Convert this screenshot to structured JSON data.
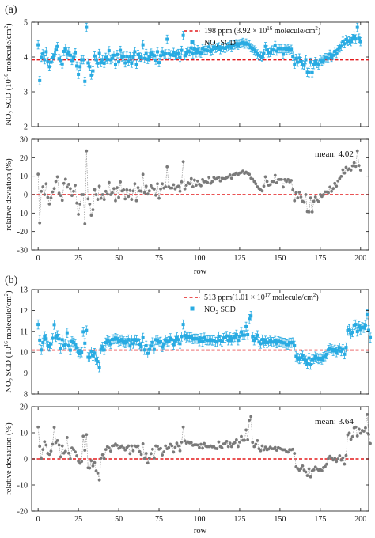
{
  "chart_data": [
    {
      "panel": "(a)",
      "type": "scatter",
      "ylabel": "NO2 SCD (10^16 molecule/cm^2)",
      "ylim": [
        2,
        5
      ],
      "yticks": [
        2,
        3,
        4,
        5
      ],
      "xlim": [
        -4,
        205
      ],
      "xticks": [
        0,
        25,
        50,
        75,
        100,
        125,
        150,
        175,
        200
      ],
      "reference": {
        "value": 3.92,
        "label": "198 ppm (3.92 × 10^16 molecule/cm^2)"
      },
      "series": [
        {
          "name": "NO2 SCD",
          "error": 0.12,
          "color": "#29abe2",
          "values": [
            4.35,
            3.32,
            3.99,
            4.09,
            3.92,
            4.15,
            3.86,
            3.72,
            3.85,
            3.98,
            4.05,
            4.2,
            4.3,
            3.95,
            3.9,
            3.8,
            4.16,
            4.25,
            4.08,
            4.14,
            4.05,
            3.9,
            3.99,
            4.12,
            3.74,
            3.5,
            3.72,
            3.92,
            3.92,
            3.3,
            4.85,
            3.83,
            3.72,
            3.48,
            3.6,
            4.03,
            3.92,
            3.82,
            4.1,
            3.84,
            3.92,
            3.82,
            3.99,
            3.93,
            4.18,
            3.92,
            3.96,
            4.05,
            3.79,
            4.07,
            3.86,
            4.19,
            4.0,
            4.02,
            3.83,
            4.02,
            3.88,
            4.01,
            3.82,
            4.0,
            4.15,
            3.79,
            4.07,
            4.0,
            3.99,
            4.35,
            3.96,
            4.1,
            3.93,
            4.0,
            4.11,
            4.06,
            4.04,
            3.91,
            4.15,
            3.84,
            4.04,
            4.15,
            4.06,
            4.09,
            4.51,
            4.09,
            4.06,
            4.06,
            4.13,
            4.04,
            4.08,
            4.1,
            3.99,
            4.19,
            4.62,
            4.04,
            4.12,
            4.17,
            4.15,
            4.26,
            4.09,
            4.23,
            4.12,
            4.21,
            4.14,
            4.11,
            4.24,
            4.19,
            4.2,
            4.18,
            4.29,
            4.16,
            4.2,
            4.29,
            4.25,
            4.27,
            4.29,
            4.21,
            4.27,
            4.26,
            4.25,
            4.28,
            4.3,
            4.34,
            4.27,
            4.34,
            4.35,
            4.38,
            4.34,
            4.38,
            4.39,
            4.42,
            4.37,
            4.4,
            4.37,
            4.35,
            4.27,
            4.25,
            4.2,
            4.15,
            4.09,
            4.05,
            4.02,
            4.0,
            4.1,
            4.3,
            4.2,
            4.12,
            4.13,
            4.2,
            4.2,
            4.33,
            4.17,
            4.24,
            4.24,
            4.24,
            4.08,
            4.24,
            4.2,
            4.24,
            4.19,
            4.22,
            4.02,
            3.79,
            3.96,
            3.85,
            3.97,
            3.87,
            3.78,
            3.76,
            3.92,
            3.56,
            3.55,
            3.85,
            3.55,
            3.78,
            3.87,
            3.81,
            3.77,
            3.92,
            3.88,
            3.92,
            3.98,
            3.98,
            3.96,
            4.08,
            3.99,
            4.05,
            4.16,
            4.1,
            4.21,
            4.26,
            4.31,
            4.45,
            4.38,
            4.5,
            4.45,
            4.47,
            4.44,
            4.53,
            4.6,
            4.52,
            4.85,
            4.54,
            4.44
          ]
        }
      ]
    },
    {
      "panel": "(a)",
      "type": "line",
      "xlabel": "row",
      "ylabel": "relative deviation (%)",
      "ylim": [
        -30,
        30
      ],
      "yticks": [
        -30,
        -20,
        -10,
        0,
        10,
        20,
        30
      ],
      "xlim": [
        -4,
        205
      ],
      "xticks": [
        0,
        25,
        50,
        75,
        100,
        125,
        150,
        175,
        200
      ],
      "reference": {
        "value": 0
      },
      "annotation": "mean: 4.02",
      "series": [
        {
          "name": "relative deviation",
          "color": "#7a7a7a",
          "values": [
            11.1,
            -15.3,
            1.8,
            4.3,
            0.0,
            5.9,
            -1.5,
            -5.1,
            -1.8,
            1.5,
            3.3,
            7.1,
            9.7,
            0.8,
            -0.5,
            -3.1,
            6.1,
            8.4,
            4.1,
            5.6,
            3.3,
            -0.5,
            1.8,
            5.1,
            -4.6,
            -10.7,
            -5.1,
            0.0,
            0.0,
            -15.8,
            23.7,
            -2.3,
            -5.1,
            -11.2,
            -8.2,
            2.8,
            0.0,
            -2.6,
            4.6,
            -2.0,
            0.0,
            -2.6,
            1.8,
            0.3,
            6.6,
            0.0,
            1.0,
            3.3,
            -3.3,
            3.8,
            -1.5,
            6.9,
            2.0,
            2.6,
            -2.3,
            2.6,
            -1.0,
            2.3,
            -2.6,
            2.0,
            5.9,
            -3.3,
            3.8,
            2.0,
            1.8,
            11.0,
            1.0,
            4.6,
            0.3,
            2.0,
            4.8,
            3.6,
            3.1,
            -0.3,
            5.9,
            -2.0,
            3.1,
            5.9,
            3.6,
            4.3,
            15.1,
            4.3,
            3.6,
            3.6,
            5.4,
            3.1,
            4.1,
            4.6,
            1.8,
            6.9,
            17.9,
            3.1,
            5.1,
            6.4,
            5.9,
            8.7,
            4.3,
            7.9,
            5.1,
            7.4,
            5.6,
            4.8,
            8.2,
            6.9,
            7.1,
            6.6,
            9.4,
            6.1,
            7.1,
            9.4,
            8.4,
            8.9,
            9.4,
            7.4,
            8.9,
            8.7,
            8.4,
            9.2,
            9.7,
            10.7,
            8.9,
            10.7,
            11.0,
            11.7,
            10.7,
            11.7,
            12.0,
            12.8,
            11.5,
            12.2,
            11.5,
            11.0,
            8.9,
            8.4,
            7.1,
            5.9,
            4.3,
            3.3,
            2.6,
            2.0,
            4.6,
            9.7,
            7.1,
            5.1,
            5.4,
            7.1,
            7.1,
            10.5,
            6.4,
            8.2,
            8.2,
            8.2,
            4.1,
            8.2,
            7.1,
            8.2,
            6.9,
            7.7,
            2.6,
            -3.3,
            1.0,
            -1.8,
            1.3,
            -1.3,
            -3.6,
            -4.1,
            0.0,
            -9.2,
            -9.4,
            -1.8,
            -9.4,
            -3.6,
            -1.3,
            -2.8,
            -3.8,
            0.0,
            -1.0,
            0.0,
            1.5,
            1.5,
            1.0,
            4.1,
            1.8,
            3.3,
            6.1,
            4.6,
            7.4,
            8.7,
            9.9,
            13.5,
            11.7,
            14.8,
            13.5,
            14.0,
            13.3,
            15.6,
            17.3,
            15.3,
            23.7,
            15.8,
            13.3
          ]
        }
      ]
    },
    {
      "panel": "(b)",
      "type": "scatter",
      "ylabel": "NO2 SCD (10^16 molecule/cm^2)",
      "ylim": [
        8,
        13
      ],
      "yticks": [
        8,
        9,
        10,
        11,
        12,
        13
      ],
      "xlim": [
        -4,
        205
      ],
      "xticks": [
        0,
        25,
        50,
        75,
        100,
        125,
        150,
        175,
        200
      ],
      "reference": {
        "value": 10.1,
        "label": "513 ppm(1.01 × 10^17 molecule/cm^2)"
      },
      "series": [
        {
          "name": "NO2 SCD",
          "error": 0.22,
          "color": "#29abe2",
          "values": [
            11.33,
            10.58,
            10.11,
            10.46,
            10.77,
            10.64,
            10.31,
            10.27,
            10.4,
            10.67,
            11.32,
            10.73,
            10.81,
            10.64,
            10.18,
            10.6,
            10.32,
            10.39,
            10.93,
            10.32,
            10.1,
            10.52,
            10.46,
            10.37,
            10.22,
            10.01,
            9.93,
            10.0,
            10.98,
            10.43,
            11.04,
            9.76,
            9.75,
            10.03,
            9.83,
            9.96,
            9.64,
            9.55,
            9.28,
            10.13,
            10.26,
            10.11,
            10.46,
            10.57,
            10.52,
            10.4,
            10.61,
            10.62,
            10.68,
            10.63,
            10.5,
            10.55,
            10.61,
            10.52,
            10.44,
            10.53,
            10.61,
            10.3,
            10.6,
            10.41,
            10.61,
            10.57,
            10.6,
            10.38,
            10.27,
            10.69,
            10.11,
            10.31,
            9.94,
            10.13,
            10.3,
            10.47,
            10.13,
            10.6,
            10.58,
            10.47,
            10.5,
            10.25,
            10.37,
            10.6,
            10.49,
            10.53,
            10.67,
            10.6,
            10.36,
            10.54,
            10.71,
            10.6,
            10.41,
            10.75,
            11.33,
            10.8,
            10.71,
            10.76,
            10.72,
            10.73,
            10.63,
            10.65,
            10.65,
            10.64,
            10.53,
            10.67,
            10.51,
            10.7,
            10.59,
            10.57,
            10.57,
            10.6,
            10.56,
            10.57,
            10.5,
            10.49,
            10.76,
            10.57,
            10.52,
            10.68,
            10.7,
            10.78,
            10.57,
            10.71,
            10.57,
            10.68,
            10.73,
            10.84,
            10.57,
            10.75,
            10.97,
            10.82,
            10.82,
            11.22,
            10.84,
            11.59,
            11.74,
            10.74,
            10.57,
            10.67,
            10.81,
            10.49,
            10.41,
            10.61,
            10.45,
            10.55,
            10.45,
            10.48,
            10.55,
            10.49,
            10.49,
            10.54,
            10.43,
            10.53,
            10.5,
            10.47,
            10.45,
            10.45,
            10.38,
            10.36,
            10.46,
            10.45,
            10.47,
            10.31,
            9.8,
            9.73,
            9.67,
            9.73,
            9.83,
            9.67,
            9.6,
            9.45,
            9.72,
            9.4,
            9.64,
            9.68,
            9.79,
            9.72,
            9.67,
            9.71,
            9.65,
            9.77,
            9.81,
            9.9,
            10.11,
            10.2,
            10.14,
            10.06,
            10.12,
            10.0,
            10.1,
            10.22,
            10.05,
            10.14,
            9.9,
            10.23,
            11.03,
            11.1,
            10.86,
            10.96,
            11.3,
            11.33,
            10.99,
            11.25,
            11.09,
            11.2,
            11.17,
            11.3,
            11.82,
            11.05,
            10.7
          ]
        }
      ]
    },
    {
      "panel": "(b)",
      "type": "line",
      "xlabel": "row",
      "ylabel": "relative deviation (%)",
      "ylim": [
        -20,
        20
      ],
      "yticks": [
        -20,
        -10,
        0,
        10,
        20
      ],
      "xlim": [
        -4,
        205
      ],
      "xticks": [
        0,
        25,
        50,
        75,
        100,
        125,
        150,
        175,
        200
      ],
      "reference": {
        "value": 0
      },
      "annotation": "mean: 3.64",
      "series": [
        {
          "name": "relative deviation",
          "color": "#7a7a7a",
          "values": [
            12.2,
            4.8,
            0.1,
            3.6,
            6.6,
            5.3,
            2.1,
            1.7,
            3.0,
            5.6,
            12.1,
            6.2,
            7.0,
            5.3,
            0.8,
            5.0,
            2.2,
            2.9,
            8.2,
            2.2,
            0.0,
            4.2,
            3.6,
            2.7,
            1.2,
            -0.9,
            -1.7,
            -1.0,
            8.7,
            3.3,
            9.3,
            -3.4,
            -3.5,
            -0.7,
            -2.7,
            -1.4,
            -4.6,
            -5.4,
            -8.1,
            0.3,
            1.6,
            0.1,
            3.6,
            4.7,
            4.2,
            3.0,
            5.0,
            5.1,
            5.7,
            5.2,
            4.0,
            4.5,
            5.0,
            4.2,
            3.4,
            4.3,
            5.0,
            2.0,
            5.0,
            3.1,
            5.0,
            4.7,
            5.0,
            2.8,
            1.7,
            5.8,
            0.1,
            2.1,
            -1.6,
            0.3,
            2.0,
            3.7,
            0.3,
            5.0,
            4.8,
            3.7,
            4.0,
            1.5,
            2.7,
            5.0,
            3.9,
            4.3,
            5.6,
            5.0,
            2.6,
            4.4,
            6.0,
            5.0,
            3.1,
            6.4,
            12.2,
            6.9,
            6.0,
            6.5,
            6.1,
            6.2,
            5.2,
            5.4,
            5.4,
            5.3,
            4.3,
            5.6,
            4.1,
            5.9,
            4.9,
            4.7,
            4.7,
            5.0,
            4.6,
            4.7,
            4.0,
            3.9,
            6.5,
            4.7,
            4.2,
            5.7,
            5.9,
            6.7,
            4.7,
            6.0,
            4.7,
            5.7,
            6.2,
            7.3,
            4.7,
            6.4,
            8.6,
            7.1,
            7.1,
            11.1,
            7.3,
            14.8,
            16.2,
            6.3,
            4.7,
            5.6,
            7.0,
            3.9,
            3.1,
            5.0,
            3.5,
            4.5,
            3.5,
            3.8,
            4.5,
            3.9,
            3.9,
            4.4,
            3.3,
            4.3,
            4.0,
            3.7,
            3.5,
            3.5,
            2.8,
            2.6,
            3.6,
            3.5,
            3.7,
            2.1,
            -3.0,
            -3.7,
            -4.3,
            -3.7,
            -2.7,
            -4.3,
            -5.0,
            -6.4,
            -3.8,
            -6.9,
            -4.6,
            -4.2,
            -3.1,
            -3.8,
            -4.3,
            -3.9,
            -4.5,
            -3.3,
            -2.9,
            -2.0,
            0.1,
            1.0,
            0.4,
            -0.4,
            0.2,
            -1.0,
            0.0,
            1.2,
            -0.5,
            0.4,
            -2.0,
            1.3,
            9.2,
            9.9,
            7.5,
            8.5,
            11.9,
            12.2,
            8.8,
            11.4,
            9.8,
            10.9,
            10.6,
            11.9,
            17.0,
            9.4,
            5.9
          ]
        }
      ]
    }
  ],
  "panels": {
    "a": {
      "label": "(a)",
      "legend_ref": "198 ppm (3.92 × 10",
      "legend_ref_exp": "16",
      "legend_ref_tail": " molecule/cm",
      "legend_ref_sup2": "2",
      "legend_ref_close": ")",
      "legend_series": "NO",
      "legend_series_sub": "2",
      "legend_series_tail": " SCD",
      "mean": "mean: 4.02"
    },
    "b": {
      "label": "(b)",
      "legend_ref": "513 ppm(1.01 × 10",
      "legend_ref_exp": "17",
      "legend_ref_tail": " molecule/cm",
      "legend_ref_sup2": "2",
      "legend_ref_close": ")",
      "legend_series": "NO",
      "legend_series_sub": "2",
      "legend_series_tail": " SCD",
      "mean": "mean: 3.64"
    }
  },
  "axis_text": {
    "scd_ylabel_pre": "NO",
    "scd_ylabel_sub": "2",
    "scd_ylabel_mid": " SCD (10",
    "scd_ylabel_exp": "16",
    "scd_ylabel_tail": " molecule/cm",
    "scd_ylabel_sup2": "2",
    "scd_ylabel_close": ")",
    "rd_ylabel": "relative deviation (%)",
    "xlabel": "row"
  },
  "colors": {
    "scd": "#29abe2",
    "deviation": "#7a7a7a",
    "reference": "#e31a1c"
  }
}
